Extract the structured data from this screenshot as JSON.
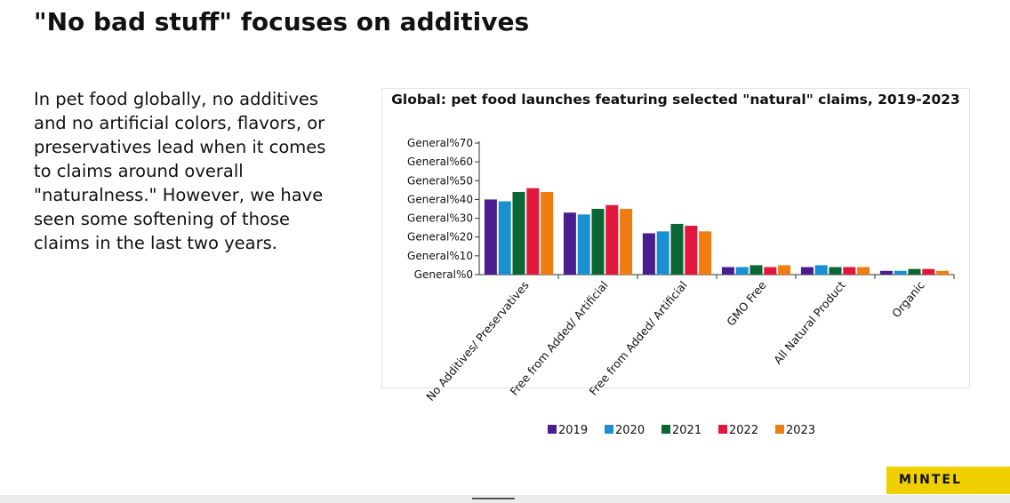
{
  "slide": {
    "title": "\"No bad stuff\" focuses on additives",
    "body": "In pet food globally, no additives and no artificial colors, flavors, or preservatives lead when it comes to claims around overall \"naturalness.\" However, we have seen some softening of those claims in the last two years.",
    "logo": "MINTEL"
  },
  "chart_data": {
    "type": "bar",
    "title": "Global: pet food launches featuring selected \"natural\" claims, 2019-2023",
    "categories": [
      "No Additives/ Preservatives",
      "Free from Added/ Artificial",
      "Free from Added/ Artificial",
      "GMO Free",
      "All Natural Product",
      "Organic"
    ],
    "series": [
      {
        "name": "2019",
        "color": "#4b1e8f",
        "values": [
          40,
          33,
          22,
          4,
          4,
          2
        ]
      },
      {
        "name": "2020",
        "color": "#1a8fd1",
        "values": [
          39,
          32,
          23,
          4,
          5,
          2
        ]
      },
      {
        "name": "2021",
        "color": "#0a6633",
        "values": [
          44,
          35,
          27,
          5,
          4,
          3
        ]
      },
      {
        "name": "2022",
        "color": "#e3173e",
        "values": [
          46,
          37,
          26,
          4,
          4,
          3
        ]
      },
      {
        "name": "2023",
        "color": "#f07d12",
        "values": [
          44,
          35,
          23,
          5,
          4,
          2
        ]
      }
    ],
    "yticks": [
      "General%0",
      "General%10",
      "General%20",
      "General%30",
      "General%40",
      "General%50",
      "General%60",
      "General%70"
    ],
    "ylim": [
      0,
      70
    ],
    "legend": "bottom",
    "grid": false
  }
}
